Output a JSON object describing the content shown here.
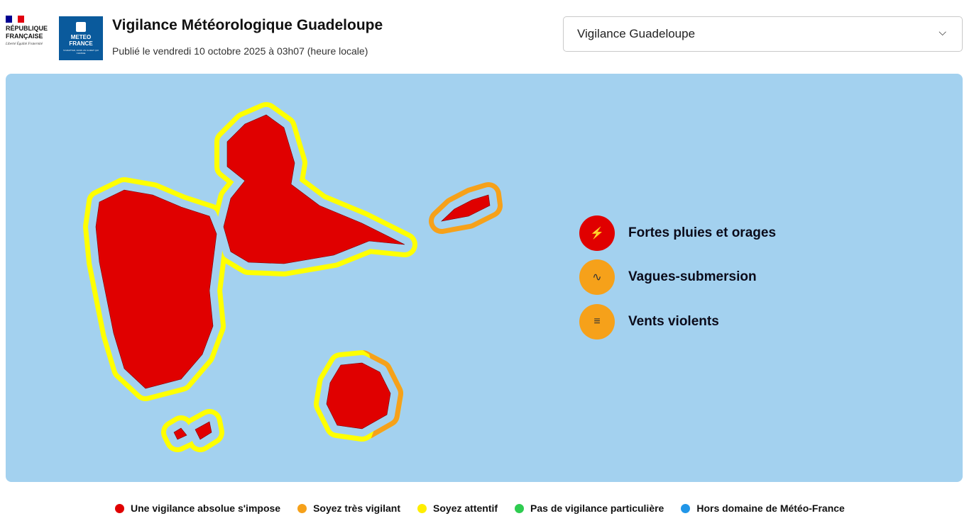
{
  "header": {
    "republique": {
      "line1": "RÉPUBLIQUE",
      "line2": "FRANÇAISE",
      "motto": "Liberté Égalité Fraternité"
    },
    "meteo_logo": {
      "line1": "METEO",
      "line2": "FRANCE",
      "tagline": "S'ADAPTER, DANS UN CLIMAT QUI CHANGE"
    },
    "title": "Vigilance Météorologique Guadeloupe",
    "subtitle": "Publié le vendredi 10 octobre 2025 à 03h07 (heure locale)",
    "select": {
      "value": "Vigilance Guadeloupe",
      "icon": "chevron-down-icon"
    }
  },
  "map": {
    "colors": {
      "sea": "#a3d1ef",
      "red": "#e00000",
      "orange": "#f6a11a",
      "yellow": "#ffff00"
    },
    "islands": [
      {
        "name": "Basse-Terre",
        "land": "red",
        "coast": "yellow"
      },
      {
        "name": "Grande-Terre",
        "land": "red",
        "coast": "yellow"
      },
      {
        "name": "La Désirade",
        "land": "red",
        "coast": "orange"
      },
      {
        "name": "Marie-Galante",
        "land": "red",
        "coast": "yellow/orange"
      },
      {
        "name": "Les Saintes",
        "land": "red",
        "coast": "yellow"
      }
    ],
    "phenomena": [
      {
        "label": "Fortes pluies et orages",
        "icon": "rain-storm-icon",
        "color": "#e00000"
      },
      {
        "label": "Vagues-submersion",
        "icon": "waves-icon",
        "color": "#f6a11a"
      },
      {
        "label": "Vents violents",
        "icon": "windsock-icon",
        "color": "#f6a11a"
      }
    ]
  },
  "legend": [
    {
      "label": "Une vigilance absolue s'impose",
      "color": "#e00000"
    },
    {
      "label": "Soyez très vigilant",
      "color": "#f6a11a"
    },
    {
      "label": "Soyez attentif",
      "color": "#ffee00"
    },
    {
      "label": "Pas de vigilance particulière",
      "color": "#2ecc50"
    },
    {
      "label": "Hors domaine de Météo-France",
      "color": "#2196e8"
    }
  ]
}
